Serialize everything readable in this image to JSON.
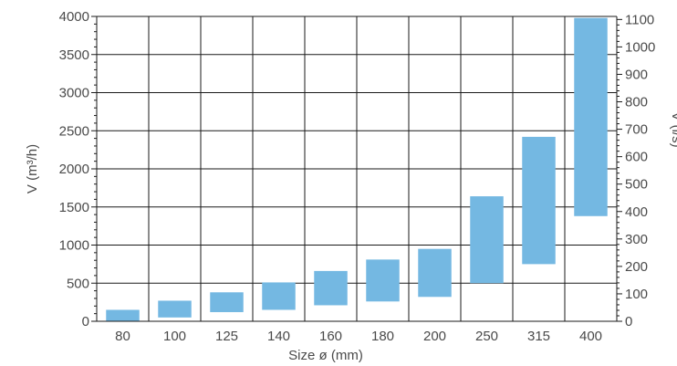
{
  "chart_data": {
    "type": "bar",
    "subtype": "floating-range",
    "categories": [
      "80",
      "100",
      "125",
      "140",
      "160",
      "180",
      "200",
      "250",
      "315",
      "400"
    ],
    "ranges": [
      [
        0,
        150
      ],
      [
        50,
        270
      ],
      [
        120,
        380
      ],
      [
        150,
        510
      ],
      [
        210,
        660
      ],
      [
        260,
        810
      ],
      [
        320,
        950
      ],
      [
        500,
        1640
      ],
      [
        750,
        2420
      ],
      [
        1380,
        3980
      ]
    ],
    "xlabel": "Size ø (mm)",
    "ylabel": "V (m³/h)",
    "ylabel_right": "V (l/s)",
    "ylim": [
      0,
      4000
    ],
    "yticks": [
      0,
      500,
      1000,
      1500,
      2000,
      2500,
      3000,
      3500,
      4000
    ],
    "ylim_right": [
      0,
      1111.11
    ],
    "yticks_right": [
      0,
      100,
      200,
      300,
      400,
      500,
      600,
      700,
      800,
      900,
      1000,
      1100
    ],
    "grid": true,
    "bar_color": "#74b8e2",
    "grid_color": "#1a1a1a",
    "text_color": "#4a4a4a"
  }
}
